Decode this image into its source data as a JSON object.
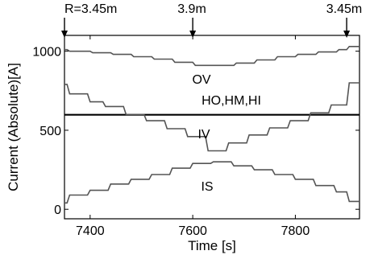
{
  "chart_data": {
    "type": "line",
    "xlabel": "Time [s]",
    "ylabel": "Current (Absolute)[A]",
    "xlim": [
      7350,
      7925
    ],
    "ylim": [
      -60,
      1100
    ],
    "xticks": [
      7400,
      7600,
      7800
    ],
    "yticks": [
      0,
      500,
      1000
    ],
    "grid": false,
    "annotations": {
      "start": "R=3.45m",
      "middle": "3.9m",
      "end": "3.45m"
    },
    "markers_x": [
      7350,
      7600,
      7900
    ],
    "series": [
      {
        "name": "OV",
        "color": "#555555",
        "x": [
          7350,
          7355,
          7360,
          7400,
          7405,
          7440,
          7445,
          7480,
          7485,
          7520,
          7525,
          7560,
          7565,
          7600,
          7605,
          7640,
          7645,
          7680,
          7685,
          7720,
          7725,
          7760,
          7765,
          7800,
          7805,
          7840,
          7845,
          7880,
          7885,
          7900,
          7905,
          7925
        ],
        "values": [
          1010,
          1010,
          1000,
          1000,
          990,
          990,
          980,
          980,
          965,
          965,
          950,
          950,
          930,
          930,
          910,
          910,
          910,
          910,
          925,
          925,
          945,
          945,
          965,
          965,
          980,
          980,
          995,
          995,
          1010,
          1010,
          1030,
          1030
        ]
      },
      {
        "name": "HO,HM,HI",
        "color": "#000000",
        "x": [
          7350,
          7925
        ],
        "values": [
          598,
          598
        ]
      },
      {
        "name": "IV",
        "color": "#555555",
        "x": [
          7350,
          7355,
          7360,
          7395,
          7400,
          7425,
          7430,
          7465,
          7470,
          7505,
          7510,
          7545,
          7550,
          7585,
          7590,
          7625,
          7630,
          7665,
          7670,
          7705,
          7710,
          7745,
          7750,
          7785,
          7790,
          7825,
          7830,
          7865,
          7870,
          7900,
          7905,
          7925
        ],
        "values": [
          790,
          790,
          730,
          730,
          680,
          680,
          650,
          650,
          600,
          600,
          560,
          560,
          510,
          510,
          460,
          460,
          370,
          370,
          420,
          420,
          470,
          470,
          515,
          515,
          560,
          560,
          610,
          610,
          660,
          660,
          800,
          800
        ]
      },
      {
        "name": "IS",
        "color": "#555555",
        "x": [
          7350,
          7355,
          7360,
          7395,
          7400,
          7435,
          7440,
          7475,
          7480,
          7515,
          7520,
          7555,
          7560,
          7595,
          7600,
          7635,
          7640,
          7675,
          7680,
          7715,
          7720,
          7755,
          7760,
          7795,
          7800,
          7835,
          7840,
          7875,
          7880,
          7900,
          7905,
          7925
        ],
        "values": [
          40,
          40,
          90,
          90,
          120,
          120,
          160,
          160,
          190,
          190,
          220,
          220,
          260,
          260,
          290,
          290,
          300,
          300,
          275,
          275,
          250,
          250,
          220,
          220,
          190,
          190,
          150,
          150,
          110,
          110,
          50,
          50
        ]
      }
    ]
  }
}
